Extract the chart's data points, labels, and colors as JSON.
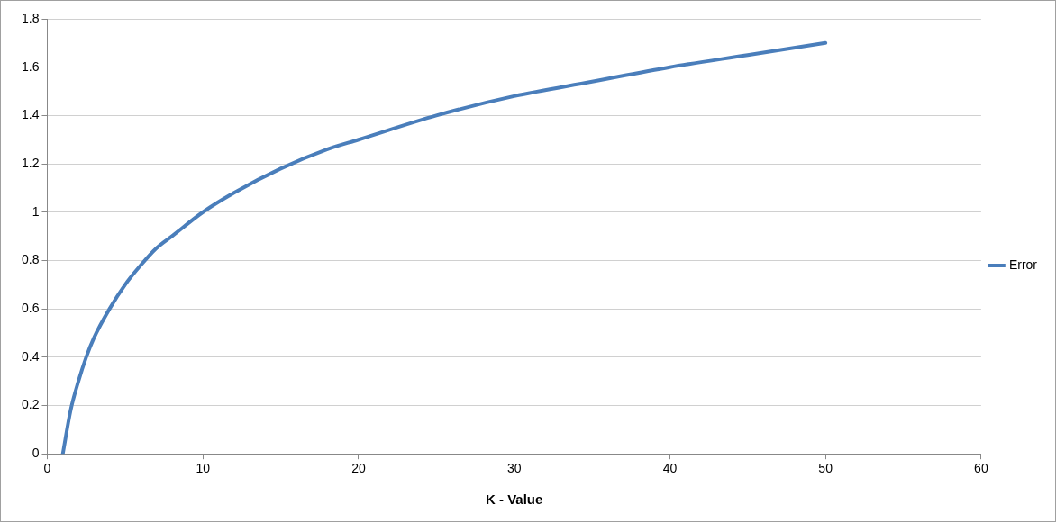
{
  "chart_data": {
    "type": "line",
    "xlabel": "K - Value",
    "x": [
      1,
      1.5,
      2,
      2.5,
      3,
      4,
      5,
      6,
      7,
      8,
      10,
      12,
      15,
      18,
      20,
      25,
      30,
      35,
      40,
      45,
      50
    ],
    "series": [
      {
        "name": "Error",
        "color": "#4a7ebb",
        "values": [
          0,
          0.18,
          0.3,
          0.4,
          0.48,
          0.6,
          0.7,
          0.78,
          0.85,
          0.9,
          1,
          1.08,
          1.18,
          1.26,
          1.3,
          1.4,
          1.48,
          1.54,
          1.6,
          1.65,
          1.7
        ]
      }
    ],
    "xlim": [
      0,
      60
    ],
    "xticks": [
      0,
      10,
      20,
      30,
      40,
      50,
      60
    ],
    "ylim": [
      0,
      1.8
    ],
    "yticks": [
      0,
      0.2,
      0.4,
      0.6,
      0.8,
      1,
      1.2,
      1.4,
      1.6,
      1.8
    ],
    "grid": "y",
    "legend": "right",
    "marker": "none",
    "line_style": "solid"
  }
}
